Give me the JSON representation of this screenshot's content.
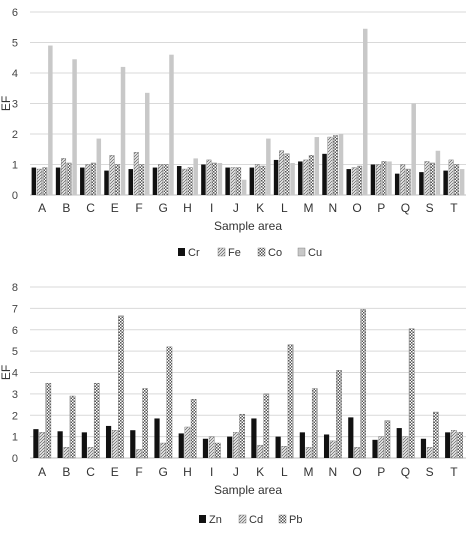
{
  "chart_data": [
    {
      "type": "bar",
      "categories": [
        "A",
        "B",
        "C",
        "E",
        "F",
        "G",
        "H",
        "I",
        "J",
        "K",
        "L",
        "M",
        "N",
        "O",
        "P",
        "Q",
        "S",
        "T"
      ],
      "series": [
        {
          "name": "Cr",
          "pattern": "solid",
          "values": [
            0.9,
            0.9,
            0.9,
            0.8,
            0.85,
            0.9,
            0.95,
            1.0,
            0.9,
            0.9,
            1.15,
            1.1,
            1.35,
            0.85,
            1.0,
            0.7,
            0.75,
            0.8
          ]
        },
        {
          "name": "Fe",
          "pattern": "diagonal",
          "values": [
            0.85,
            1.2,
            1.0,
            1.3,
            1.4,
            1.0,
            0.85,
            1.15,
            0.9,
            1.0,
            1.45,
            1.15,
            1.9,
            0.9,
            1.0,
            1.0,
            1.1,
            1.15
          ]
        },
        {
          "name": "Co",
          "pattern": "checker",
          "values": [
            0.9,
            1.05,
            1.05,
            1.0,
            1.0,
            1.0,
            0.9,
            1.05,
            0.9,
            0.95,
            1.35,
            1.3,
            1.95,
            0.95,
            1.1,
            0.85,
            1.05,
            1.0
          ]
        },
        {
          "name": "Cu",
          "pattern": "light",
          "values": [
            4.9,
            4.45,
            1.85,
            4.2,
            3.35,
            4.6,
            1.2,
            1.05,
            0.5,
            1.85,
            1.05,
            1.9,
            2.0,
            5.45,
            1.1,
            3.0,
            1.45,
            0.85
          ]
        }
      ],
      "ylabel": "EF",
      "xlabel": "Sample area",
      "ylim": [
        0,
        6
      ],
      "yticks": [
        "0",
        "1",
        "2",
        "3",
        "4",
        "5",
        "6"
      ],
      "grid": true,
      "legend_position": "bottom"
    },
    {
      "type": "bar",
      "categories": [
        "A",
        "B",
        "C",
        "E",
        "F",
        "G",
        "H",
        "I",
        "J",
        "K",
        "L",
        "M",
        "N",
        "O",
        "P",
        "Q",
        "S",
        "T"
      ],
      "series": [
        {
          "name": "Zn",
          "pattern": "solid",
          "values": [
            1.35,
            1.25,
            1.2,
            1.5,
            1.3,
            1.85,
            1.15,
            0.9,
            1.0,
            1.85,
            1.0,
            1.2,
            1.1,
            1.9,
            0.85,
            1.4,
            0.9,
            1.2
          ]
        },
        {
          "name": "Cd",
          "pattern": "diagonal",
          "values": [
            1.2,
            0.5,
            0.5,
            1.3,
            0.4,
            0.7,
            1.45,
            1.0,
            1.2,
            0.6,
            0.55,
            0.5,
            0.8,
            0.5,
            1.0,
            1.0,
            0.5,
            1.3
          ]
        },
        {
          "name": "Pb",
          "pattern": "checker",
          "values": [
            3.5,
            2.9,
            3.5,
            6.65,
            3.25,
            5.2,
            2.75,
            0.7,
            2.05,
            3.0,
            5.3,
            3.25,
            4.1,
            6.95,
            1.75,
            6.05,
            2.15,
            1.2
          ]
        }
      ],
      "ylabel": "EF",
      "xlabel": "Sample area",
      "ylim": [
        0,
        8
      ],
      "yticks": [
        "0",
        "1",
        "2",
        "3",
        "4",
        "5",
        "6",
        "7",
        "8"
      ],
      "grid": true,
      "legend_position": "bottom"
    }
  ]
}
